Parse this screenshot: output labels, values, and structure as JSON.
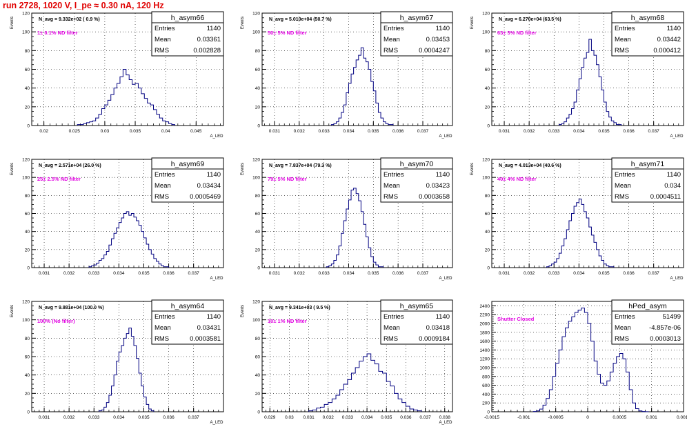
{
  "page": {
    "title": "run 2728,  1020 V, I_pe ≈ 0.30 nA, 120 Hz"
  },
  "chart_data": [
    {
      "type": "bar",
      "name": "h_asym66",
      "navg": "N_avg = 9.332e+02 ( 0.9 %)",
      "filter": "1± 0.1% ND filter",
      "stats": {
        "entries": "1140",
        "mean": "0.03361",
        "rms": "0.002828"
      },
      "xlim": [
        0.018,
        0.0495
      ],
      "ylim": [
        0,
        120
      ],
      "xticks": [
        0.02,
        0.025,
        0.03,
        0.035,
        0.04,
        0.045
      ],
      "xticklabels": [
        "0.02",
        "0.025",
        "0.03",
        "0.035",
        "0.04",
        "0.045"
      ],
      "yticks": [
        0,
        20,
        40,
        60,
        80,
        100,
        120
      ],
      "ylabel": "Events",
      "xlabel": "A_LED",
      "bin_width": 0.0005,
      "bin_centers": [
        0.02575,
        0.02625,
        0.02675,
        0.02725,
        0.02775,
        0.02825,
        0.02875,
        0.02925,
        0.02975,
        0.03025,
        0.03075,
        0.03125,
        0.03175,
        0.03225,
        0.03275,
        0.03325,
        0.03375,
        0.03425,
        0.03475,
        0.03525,
        0.03575,
        0.03625,
        0.03675,
        0.03725,
        0.03775,
        0.03825,
        0.03875,
        0.03925,
        0.03975,
        0.04025,
        0.04075,
        0.04125
      ],
      "values": [
        1,
        1,
        2,
        3,
        4,
        5,
        8,
        12,
        18,
        22,
        27,
        33,
        40,
        45,
        52,
        60,
        54,
        49,
        44,
        45,
        40,
        34,
        29,
        24,
        22,
        17,
        12,
        8,
        5,
        4,
        2,
        1
      ]
    },
    {
      "type": "bar",
      "name": "h_asym67",
      "navg": "N_avg = 5.010e+04 (50.7 %)",
      "filter": "50± 5% ND filter",
      "stats": {
        "entries": "1140",
        "mean": "0.03453",
        "rms": "0.0004247"
      },
      "xlim": [
        0.0305,
        0.0382
      ],
      "ylim": [
        0,
        120
      ],
      "xticks": [
        0.031,
        0.032,
        0.033,
        0.034,
        0.035,
        0.036,
        0.037
      ],
      "xticklabels": [
        "0.031",
        "0.032",
        "0.033",
        "0.034",
        "0.035",
        "0.036",
        "0.037"
      ],
      "yticks": [
        0,
        20,
        40,
        60,
        80,
        100,
        120
      ],
      "ylabel": "Events",
      "xlabel": "A_LED",
      "bin_width": 0.0001,
      "bin_centers": [
        0.03335,
        0.03345,
        0.03355,
        0.03365,
        0.03375,
        0.03385,
        0.03395,
        0.03405,
        0.03415,
        0.03425,
        0.03435,
        0.03445,
        0.03455,
        0.03465,
        0.03475,
        0.03485,
        0.03495,
        0.03505,
        0.03515,
        0.03525,
        0.03535,
        0.03545,
        0.03555,
        0.03565,
        0.03575
      ],
      "values": [
        1,
        2,
        4,
        8,
        14,
        22,
        35,
        45,
        55,
        62,
        70,
        75,
        83,
        72,
        68,
        60,
        47,
        37,
        24,
        14,
        8,
        4,
        2,
        1,
        1
      ]
    },
    {
      "type": "bar",
      "name": "h_asym68",
      "navg": "N_avg = 6.270e+04 (63.5 %)",
      "filter": "63± 5% ND filter",
      "stats": {
        "entries": "1140",
        "mean": "0.03442",
        "rms": "0.000412"
      },
      "xlim": [
        0.0305,
        0.0382
      ],
      "ylim": [
        0,
        120
      ],
      "xticks": [
        0.031,
        0.032,
        0.033,
        0.034,
        0.035,
        0.036,
        0.037
      ],
      "xticklabels": [
        "0.031",
        "0.032",
        "0.033",
        "0.034",
        "0.035",
        "0.036",
        "0.037"
      ],
      "yticks": [
        0,
        20,
        40,
        60,
        80,
        100,
        120
      ],
      "ylabel": "Events",
      "xlabel": "A_LED",
      "bin_width": 0.0001,
      "bin_centers": [
        0.03325,
        0.03335,
        0.03345,
        0.03355,
        0.03365,
        0.03375,
        0.03385,
        0.03395,
        0.03405,
        0.03415,
        0.03425,
        0.03435,
        0.03445,
        0.03455,
        0.03465,
        0.03475,
        0.03485,
        0.03495,
        0.03505,
        0.03515,
        0.03525,
        0.03535,
        0.03545,
        0.03555,
        0.03565
      ],
      "values": [
        1,
        2,
        4,
        8,
        12,
        18,
        25,
        38,
        50,
        62,
        72,
        78,
        92,
        80,
        75,
        65,
        52,
        38,
        25,
        15,
        9,
        5,
        3,
        1,
        1
      ]
    },
    {
      "type": "bar",
      "name": "h_asym69",
      "navg": "N_avg = 2.571e+04 (26.0 %)",
      "filter": "25± 2.5% ND filter",
      "stats": {
        "entries": "1140",
        "mean": "0.03434",
        "rms": "0.0005469"
      },
      "xlim": [
        0.0305,
        0.0382
      ],
      "ylim": [
        0,
        120
      ],
      "xticks": [
        0.031,
        0.032,
        0.033,
        0.034,
        0.035,
        0.036,
        0.037
      ],
      "xticklabels": [
        "0.031",
        "0.032",
        "0.033",
        "0.034",
        "0.035",
        "0.036",
        "0.037"
      ],
      "yticks": [
        0,
        20,
        40,
        60,
        80,
        100,
        120
      ],
      "ylabel": "Events",
      "xlabel": "A_LED",
      "bin_width": 0.0001,
      "bin_centers": [
        0.03285,
        0.03295,
        0.03305,
        0.03315,
        0.03325,
        0.03335,
        0.03345,
        0.03355,
        0.03365,
        0.03375,
        0.03385,
        0.03395,
        0.03405,
        0.03415,
        0.03425,
        0.03435,
        0.03445,
        0.03455,
        0.03465,
        0.03475,
        0.03485,
        0.03495,
        0.03505,
        0.03515,
        0.03525,
        0.03535,
        0.03545,
        0.03555,
        0.03565,
        0.03575,
        0.03585,
        0.03595
      ],
      "values": [
        1,
        2,
        3,
        5,
        8,
        10,
        14,
        18,
        25,
        32,
        38,
        44,
        50,
        55,
        60,
        62,
        58,
        60,
        56,
        52,
        47,
        40,
        33,
        26,
        20,
        15,
        10,
        7,
        4,
        2,
        1,
        1
      ]
    },
    {
      "type": "bar",
      "name": "h_asym70",
      "navg": "N_avg = 7.837e+04 (79.3 %)",
      "filter": "79± 5% ND filter",
      "stats": {
        "entries": "1140",
        "mean": "0.03423",
        "rms": "0.0003658"
      },
      "xlim": [
        0.0305,
        0.0382
      ],
      "ylim": [
        0,
        120
      ],
      "xticks": [
        0.031,
        0.032,
        0.033,
        0.034,
        0.035,
        0.036,
        0.037
      ],
      "xticklabels": [
        "0.031",
        "0.032",
        "0.033",
        "0.034",
        "0.035",
        "0.036",
        "0.037"
      ],
      "yticks": [
        0,
        20,
        40,
        60,
        80,
        100,
        120
      ],
      "ylabel": "Events",
      "xlabel": "A_LED",
      "bin_width": 0.0001,
      "bin_centers": [
        0.03315,
        0.03325,
        0.03335,
        0.03345,
        0.03355,
        0.03365,
        0.03375,
        0.03385,
        0.03395,
        0.03405,
        0.03415,
        0.03425,
        0.03435,
        0.03445,
        0.03455,
        0.03465,
        0.03475,
        0.03485,
        0.03495,
        0.03505,
        0.03515,
        0.03525,
        0.03535
      ],
      "values": [
        1,
        2,
        4,
        8,
        14,
        24,
        38,
        52,
        65,
        75,
        86,
        88,
        82,
        74,
        62,
        48,
        34,
        22,
        12,
        6,
        3,
        1,
        1
      ]
    },
    {
      "type": "bar",
      "name": "h_asym71",
      "navg": "N_avg = 4.013e+04 (40.6 %)",
      "filter": "40± 4% ND filter",
      "stats": {
        "entries": "1140",
        "mean": "0.034",
        "rms": "0.0004511"
      },
      "xlim": [
        0.0305,
        0.0382
      ],
      "ylim": [
        0,
        120
      ],
      "xticks": [
        0.031,
        0.032,
        0.033,
        0.034,
        0.035,
        0.036,
        0.037
      ],
      "xticklabels": [
        "0.031",
        "0.032",
        "0.033",
        "0.034",
        "0.035",
        "0.036",
        "0.037"
      ],
      "yticks": [
        0,
        20,
        40,
        60,
        80,
        100,
        120
      ],
      "ylabel": "Events",
      "xlabel": "A_LED",
      "bin_width": 0.0001,
      "bin_centers": [
        0.03275,
        0.03285,
        0.03295,
        0.03305,
        0.03315,
        0.03325,
        0.03335,
        0.03345,
        0.03355,
        0.03365,
        0.03375,
        0.03385,
        0.03395,
        0.03405,
        0.03415,
        0.03425,
        0.03435,
        0.03445,
        0.03455,
        0.03465,
        0.03475,
        0.03485,
        0.03495,
        0.03505,
        0.03515,
        0.03525,
        0.03535
      ],
      "values": [
        1,
        2,
        4,
        6,
        10,
        16,
        24,
        32,
        42,
        52,
        60,
        68,
        72,
        76,
        70,
        62,
        55,
        45,
        36,
        28,
        20,
        13,
        8,
        4,
        2,
        1,
        1
      ]
    },
    {
      "type": "bar",
      "name": "h_asym64",
      "navg": "N_avg = 9.881e+04 (100.0 %)",
      "filter": "100% (No filter)",
      "stats": {
        "entries": "1140",
        "mean": "0.03431",
        "rms": "0.0003581"
      },
      "xlim": [
        0.0305,
        0.0382
      ],
      "ylim": [
        0,
        120
      ],
      "xticks": [
        0.031,
        0.032,
        0.033,
        0.034,
        0.035,
        0.036,
        0.037
      ],
      "xticklabels": [
        "0.031",
        "0.032",
        "0.033",
        "0.034",
        "0.035",
        "0.036",
        "0.037"
      ],
      "yticks": [
        0,
        20,
        40,
        60,
        80,
        100,
        120
      ],
      "ylabel": "Events",
      "xlabel": "A_LED",
      "bin_width": 0.0001,
      "bin_centers": [
        0.03325,
        0.03335,
        0.03345,
        0.03355,
        0.03365,
        0.03375,
        0.03385,
        0.03395,
        0.03405,
        0.03415,
        0.03425,
        0.03435,
        0.03445,
        0.03455,
        0.03465,
        0.03475,
        0.03485,
        0.03495,
        0.03505,
        0.03515,
        0.03525,
        0.03535
      ],
      "values": [
        1,
        2,
        5,
        10,
        18,
        28,
        40,
        55,
        65,
        72,
        80,
        85,
        91,
        82,
        72,
        58,
        42,
        28,
        16,
        8,
        3,
        1
      ]
    },
    {
      "type": "bar",
      "name": "h_asym65",
      "navg": "N_avg = 9.341e+03 ( 9.5 %)",
      "filter": "10± 1% ND filter",
      "stats": {
        "entries": "1140",
        "mean": "0.03418",
        "rms": "0.0009184"
      },
      "xlim": [
        0.0286,
        0.0384
      ],
      "ylim": [
        0,
        120
      ],
      "xticks": [
        0.029,
        0.03,
        0.031,
        0.032,
        0.033,
        0.034,
        0.035,
        0.036,
        0.037,
        0.038
      ],
      "xticklabels": [
        "0.029",
        "0.03",
        "0.031",
        "0.032",
        "0.033",
        "0.034",
        "0.035",
        "0.036",
        "0.037",
        "0.038"
      ],
      "yticks": [
        0,
        20,
        40,
        60,
        80,
        100,
        120
      ],
      "ylabel": "Events",
      "xlabel": "A_LED",
      "bin_width": 0.0002,
      "bin_centers": [
        0.0311,
        0.0313,
        0.0315,
        0.0317,
        0.0319,
        0.0321,
        0.0323,
        0.0325,
        0.0327,
        0.0329,
        0.0331,
        0.0333,
        0.0335,
        0.0337,
        0.0339,
        0.0341,
        0.0343,
        0.0345,
        0.0347,
        0.0349,
        0.0351,
        0.0353,
        0.0355,
        0.0357,
        0.0359,
        0.0361,
        0.0363,
        0.0365,
        0.0367
      ],
      "values": [
        1,
        2,
        4,
        5,
        8,
        10,
        14,
        18,
        24,
        30,
        35,
        42,
        48,
        55,
        60,
        63,
        56,
        52,
        44,
        42,
        33,
        28,
        20,
        14,
        10,
        6,
        3,
        2,
        1
      ]
    },
    {
      "type": "bar",
      "name": "hPed_asym",
      "navg": "",
      "filter": "Shutter Closed",
      "stats": {
        "entries": "51499",
        "mean": "-4.857e-06",
        "rms": "0.0003013"
      },
      "xlim": [
        -0.0015,
        0.0015
      ],
      "ylim": [
        0,
        2500
      ],
      "xticks": [
        -0.0015,
        -0.001,
        -0.0005,
        0,
        0.0005,
        0.001,
        0.0015
      ],
      "xticklabels": [
        "-0.0015",
        "-0.001",
        "-0.0005",
        "0",
        "0.0005",
        "0.001",
        "0.0015"
      ],
      "yticks": [
        0,
        200,
        400,
        600,
        800,
        1000,
        1200,
        1400,
        1600,
        1800,
        2000,
        2200,
        2400
      ],
      "ylabel": "",
      "xlabel": "",
      "bin_width": 5e-05,
      "bin_centers": [
        -0.000825,
        -0.000775,
        -0.000725,
        -0.000675,
        -0.000625,
        -0.000575,
        -0.000525,
        -0.000475,
        -0.000425,
        -0.000375,
        -0.000325,
        -0.000275,
        -0.000225,
        -0.000175,
        -0.000125,
        -7.5e-05,
        -2.5e-05,
        2.5e-05,
        7.5e-05,
        0.000125,
        0.000175,
        0.000225,
        0.000275,
        0.000325,
        0.000375,
        0.000425,
        0.000475,
        0.000525,
        0.000575,
        0.000625,
        0.000675,
        0.000725,
        0.000775,
        0.000825,
        0.000875,
        0.000925
      ],
      "values": [
        5,
        20,
        60,
        150,
        300,
        500,
        800,
        1100,
        1400,
        1700,
        1900,
        2050,
        2150,
        2250,
        2300,
        2350,
        2250,
        2000,
        1600,
        1150,
        850,
        650,
        600,
        700,
        900,
        1100,
        1250,
        1320,
        1200,
        900,
        500,
        200,
        70,
        20,
        5,
        2
      ]
    }
  ]
}
